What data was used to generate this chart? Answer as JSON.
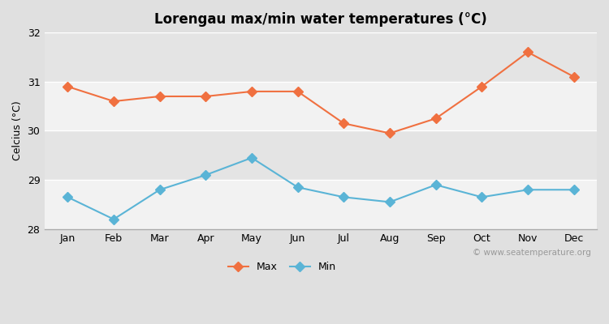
{
  "title": "Lorengau max/min water temperatures (°C)",
  "ylabel": "Celcius (°C)",
  "months": [
    "Jan",
    "Feb",
    "Mar",
    "Apr",
    "May",
    "Jun",
    "Jul",
    "Aug",
    "Sep",
    "Oct",
    "Nov",
    "Dec"
  ],
  "max_temps": [
    30.9,
    30.6,
    30.7,
    30.7,
    30.8,
    30.8,
    30.15,
    29.95,
    30.25,
    30.9,
    31.6,
    31.1
  ],
  "min_temps": [
    28.65,
    28.2,
    28.8,
    29.1,
    29.45,
    28.85,
    28.65,
    28.55,
    28.9,
    28.65,
    28.8,
    28.8
  ],
  "max_color": "#f07040",
  "min_color": "#5ab4d6",
  "bg_outer": "#e0e0e0",
  "band_light": "#f2f2f2",
  "band_dark": "#e4e4e4",
  "ylim": [
    28.0,
    32.0
  ],
  "yticks": [
    28,
    29,
    30,
    31,
    32
  ],
  "watermark": "© www.seatemperature.org",
  "marker_style": "D",
  "marker_size": 6,
  "line_width": 1.5,
  "title_fontsize": 12,
  "label_fontsize": 9,
  "tick_fontsize": 9
}
